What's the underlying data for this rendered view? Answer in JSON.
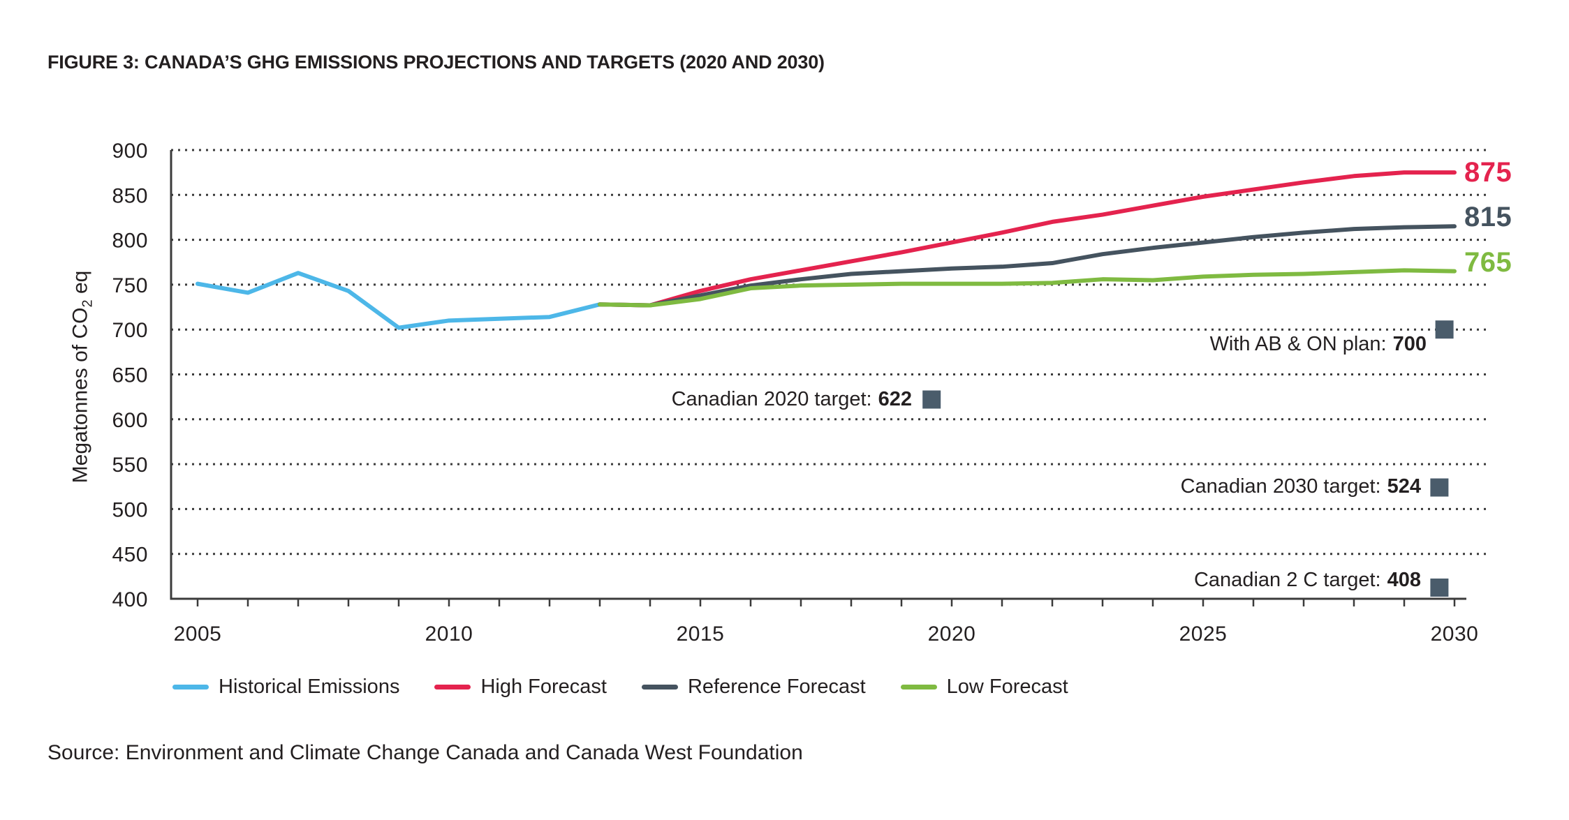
{
  "figure": {
    "title": "FIGURE 3: CANADA’S GHG EMISSIONS PROJECTIONS AND TARGETS (2020 AND 2030)",
    "source": "Source: Environment and Climate Change Canada and Canada West Foundation"
  },
  "chart_data": {
    "type": "line",
    "title": "FIGURE 3: CANADA’S GHG EMISSIONS PROJECTIONS AND TARGETS (2020 AND 2030)",
    "xlabel": "",
    "ylabel": "Megatonnes of CO2 eq",
    "ylabel_pre": "Megatonnes of CO",
    "ylabel_sub": "2",
    "ylabel_post": " eq",
    "xlim": [
      2005,
      2030
    ],
    "ylim": [
      400,
      900
    ],
    "x_ticks": [
      2005,
      2010,
      2015,
      2020,
      2025,
      2030
    ],
    "y_ticks": [
      900,
      850,
      800,
      750,
      700,
      650,
      600,
      550,
      500,
      450,
      400
    ],
    "grid": "horizontal dotted",
    "legend_position": "bottom",
    "marker_color": "#4a5c6b",
    "series": [
      {
        "name": "Historical Emissions",
        "color": "#4db7e8",
        "years": [
          2005,
          2006,
          2007,
          2008,
          2009,
          2010,
          2011,
          2012,
          2013
        ],
        "values": [
          751,
          741,
          763,
          743,
          702,
          710,
          712,
          714,
          728
        ]
      },
      {
        "name": "High Forecast",
        "color": "#e4234e",
        "end_label": "875",
        "years": [
          2013,
          2014,
          2015,
          2016,
          2017,
          2018,
          2019,
          2020,
          2021,
          2022,
          2023,
          2024,
          2025,
          2026,
          2027,
          2028,
          2029,
          2030
        ],
        "values": [
          728,
          727,
          743,
          756,
          766,
          776,
          786,
          797,
          808,
          820,
          828,
          838,
          848,
          856,
          864,
          871,
          875,
          875
        ]
      },
      {
        "name": "Reference Forecast",
        "color": "#45535f",
        "end_label": "815",
        "years": [
          2013,
          2014,
          2015,
          2016,
          2017,
          2018,
          2019,
          2020,
          2021,
          2022,
          2023,
          2024,
          2025,
          2026,
          2027,
          2028,
          2029,
          2030
        ],
        "values": [
          728,
          727,
          738,
          749,
          756,
          762,
          765,
          768,
          770,
          774,
          784,
          791,
          797,
          803,
          808,
          812,
          814,
          815
        ]
      },
      {
        "name": "Low Forecast",
        "color": "#7fba41",
        "end_label": "765",
        "years": [
          2013,
          2014,
          2015,
          2016,
          2017,
          2018,
          2019,
          2020,
          2021,
          2022,
          2023,
          2024,
          2025,
          2026,
          2027,
          2028,
          2029,
          2030
        ],
        "values": [
          728,
          727,
          734,
          746,
          749,
          750,
          751,
          751,
          751,
          752,
          756,
          755,
          759,
          761,
          762,
          764,
          766,
          765
        ]
      }
    ],
    "annotations": [
      {
        "label": "With AB & ON plan:",
        "value": "700",
        "marker_year": 2029.8,
        "marker_value": 700
      },
      {
        "label": "Canadian 2020 target:",
        "value": "622",
        "marker_year": 2019.6,
        "marker_value": 622
      },
      {
        "label": "Canadian 2030 target:",
        "value": "524",
        "marker_year": 2029.7,
        "marker_value": 524
      },
      {
        "label": "Canadian 2 C target:",
        "value": "408",
        "marker_year": 2029.7,
        "marker_value": 408
      }
    ]
  }
}
